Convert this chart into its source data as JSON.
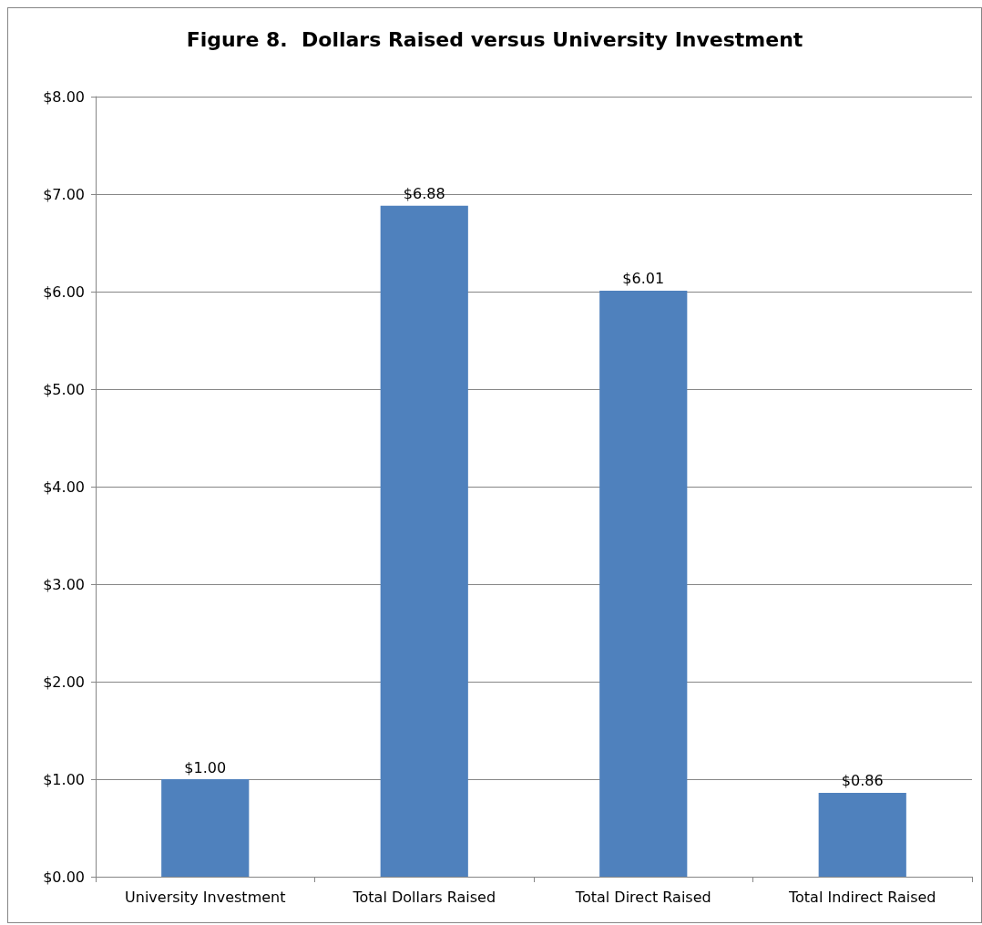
{
  "chart_data": {
    "type": "bar",
    "title": "Figure 8.  Dollars Raised versus University Investment",
    "categories": [
      "University Investment",
      "Total Dollars Raised",
      "Total Direct Raised",
      "Total Indirect Raised"
    ],
    "values": [
      1.0,
      6.88,
      6.01,
      0.86
    ],
    "value_labels": [
      "$1.00",
      "$6.88",
      "$6.01",
      "$0.86"
    ],
    "color": "#4f81bd",
    "ylim": [
      0,
      8
    ],
    "yticks": [
      {
        "value": 0,
        "label": "$0.00"
      },
      {
        "value": 1,
        "label": "$1.00"
      },
      {
        "value": 2,
        "label": "$2.00"
      },
      {
        "value": 3,
        "label": "$3.00"
      },
      {
        "value": 4,
        "label": "$4.00"
      },
      {
        "value": 5,
        "label": "$5.00"
      },
      {
        "value": 6,
        "label": "$6.00"
      },
      {
        "value": 7,
        "label": "$7.00"
      },
      {
        "value": 8,
        "label": "$8.00"
      }
    ],
    "grid": "y"
  }
}
